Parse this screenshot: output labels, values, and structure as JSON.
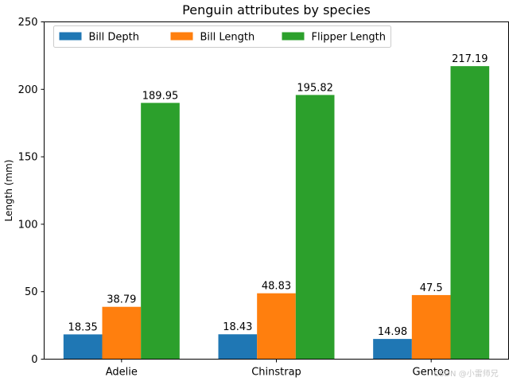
{
  "chart_data": {
    "type": "bar",
    "title": "Penguin attributes by species",
    "xlabel": "",
    "ylabel": "Length (mm)",
    "categories": [
      "Adelie",
      "Chinstrap",
      "Gentoo"
    ],
    "series": [
      {
        "name": "Bill Depth",
        "values": [
          18.35,
          18.43,
          14.98
        ],
        "labels": [
          "18.35",
          "18.43",
          "14.98"
        ],
        "color": "#1f77b4"
      },
      {
        "name": "Bill Length",
        "values": [
          38.79,
          48.83,
          47.5
        ],
        "labels": [
          "38.79",
          "48.83",
          "47.5"
        ],
        "color": "#ff7f0e"
      },
      {
        "name": "Flipper Length",
        "values": [
          189.95,
          195.82,
          217.19
        ],
        "labels": [
          "189.95",
          "195.82",
          "217.19"
        ],
        "color": "#2ca02c"
      }
    ],
    "ylim": [
      0,
      250
    ],
    "yticks": [
      0,
      50,
      100,
      150,
      200,
      250
    ],
    "grid": false,
    "legend": {
      "placement": "top-left",
      "columns": 3
    }
  },
  "watermark": "CSDN @小雷师兄"
}
